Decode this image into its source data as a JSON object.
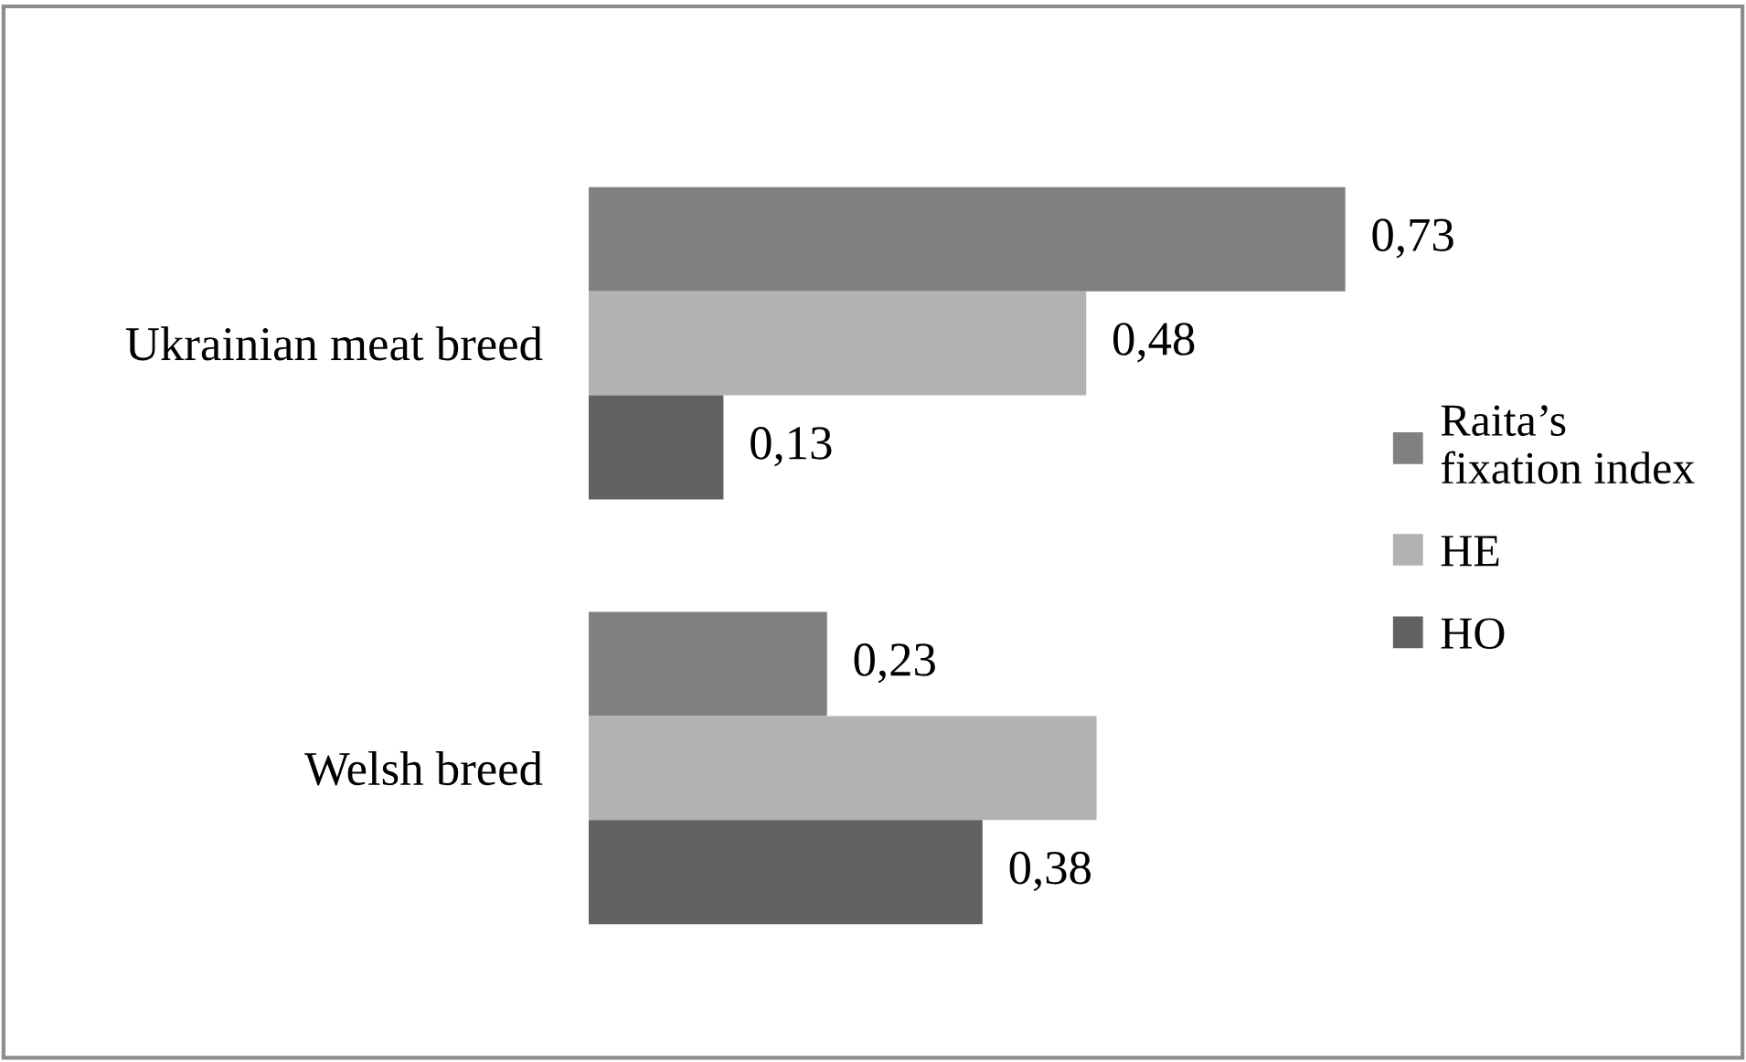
{
  "chart_data": {
    "type": "bar",
    "orientation": "horizontal",
    "categories": [
      "Ukrainian meat breed",
      "Welsh breed"
    ],
    "series": [
      {
        "name": "Raita’s fixation index",
        "color": "#808080",
        "values": [
          0.73,
          0.23
        ],
        "value_labels": [
          "0,73",
          "0,23"
        ]
      },
      {
        "name": "HE",
        "color": "#b2b2b2",
        "values": [
          0.48,
          0.49
        ],
        "value_labels": [
          "0,48",
          null
        ]
      },
      {
        "name": "HO",
        "color": "#626262",
        "values": [
          0.13,
          0.38
        ],
        "value_labels": [
          "0,13",
          "0,38"
        ]
      }
    ],
    "legend": "right",
    "grid": false
  }
}
